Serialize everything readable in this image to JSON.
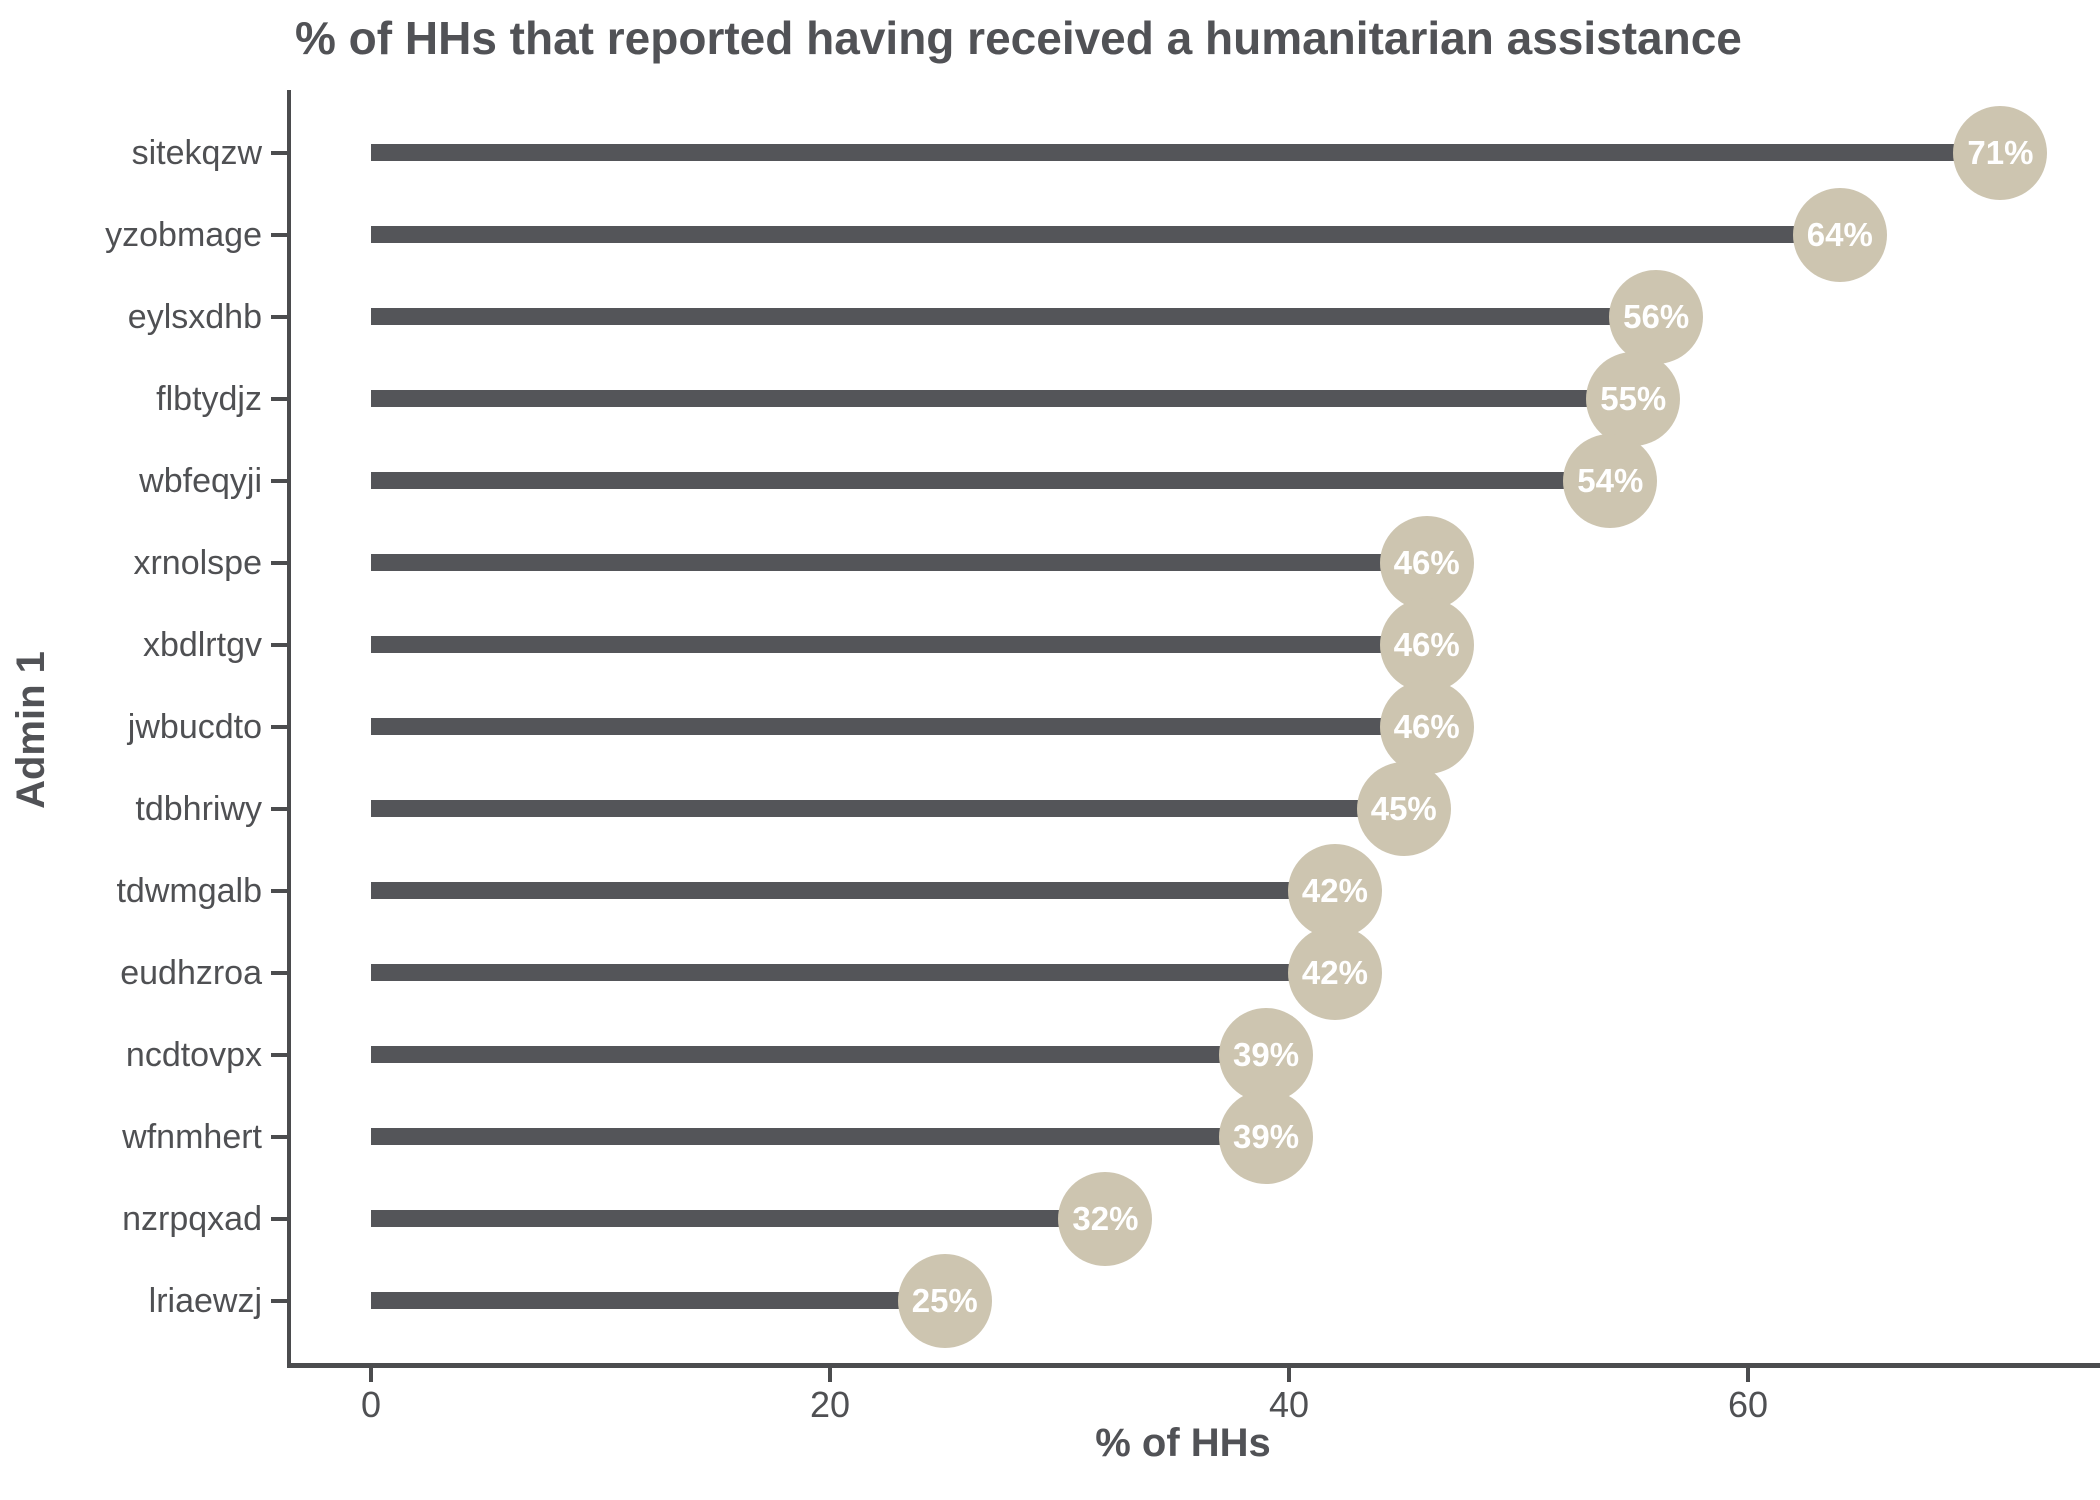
{
  "chart_data": {
    "type": "bar",
    "variant": "horizontal-lollipop",
    "title": "% of HHs that reported having received a humanitarian assistance",
    "xlabel": "% of HHs",
    "ylabel": "Admin 1",
    "categories": [
      "sitekqzw",
      "yzobmage",
      "eylsxdhb",
      "flbtydjz",
      "wbfeqyji",
      "xrnolspe",
      "xbdlrtgv",
      "jwbucdto",
      "tdbhriwy",
      "tdwmgalb",
      "eudhzroa",
      "ncdtovpx",
      "wfnmhert",
      "nzrpqxad",
      "lriaewzj"
    ],
    "values": [
      71,
      64,
      56,
      55,
      54,
      46,
      46,
      46,
      45,
      42,
      42,
      39,
      39,
      32,
      25
    ],
    "value_labels": [
      "71%",
      "64%",
      "56%",
      "55%",
      "54%",
      "46%",
      "46%",
      "46%",
      "45%",
      "42%",
      "42%",
      "39%",
      "39%",
      "32%",
      "25%"
    ],
    "x_ticks": [
      0,
      20,
      40,
      60
    ],
    "xlim": [
      0,
      75
    ],
    "grid": false,
    "legend": false,
    "colors": {
      "bar": "#545559",
      "point": "#CDC5B0",
      "point_text": "#FFFFFF",
      "axis": "#4B4C4E",
      "text": "#4F5053",
      "title": "#515256"
    }
  }
}
